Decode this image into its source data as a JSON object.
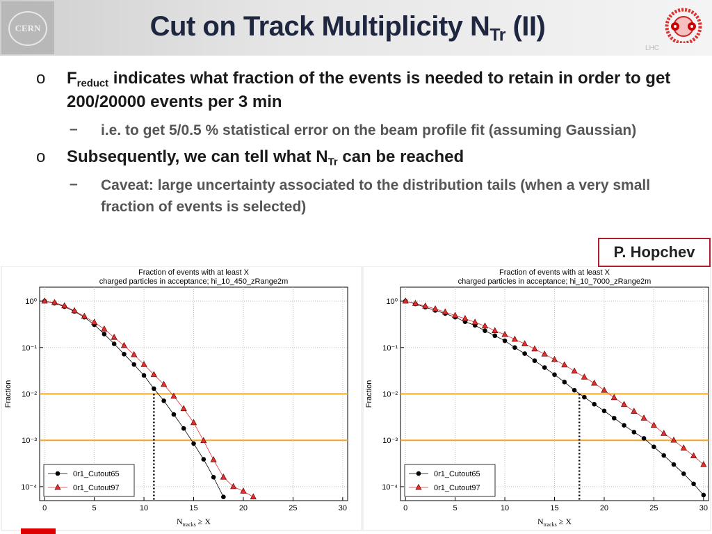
{
  "header": {
    "title": [
      "Cut on Track Multiplicity N",
      "Tr",
      " (II)"
    ],
    "logo_left": "CERN",
    "logo_right": "LHC"
  },
  "bullets": [
    {
      "marker": "o",
      "text": [
        "F",
        "reduct",
        " indicates what fraction of the events is needed to retain in order to get 200/20000 events per 3 min"
      ],
      "items": [
        {
          "marker": "–",
          "text": [
            "i.e. to get 5/0.5 % statistical error on the beam profile fit (assuming Gaussian)"
          ]
        }
      ]
    },
    {
      "marker": "o",
      "text": [
        "Subsequently, we can tell what N",
        "Tr",
        " can be reached"
      ],
      "items": [
        {
          "marker": "–",
          "text": [
            "Caveat: large uncertainty associated to the distribution tails (when a very small fraction of events is selected)"
          ]
        }
      ]
    }
  ],
  "author": "P. Hopchev",
  "chart_data": [
    {
      "type": "line",
      "title": [
        "Fraction of events with at least X",
        "charged particles in acceptance; hi_10_450_zRange2m"
      ],
      "xlabel": [
        "N",
        "tracks",
        " ≥ X"
      ],
      "ylabel": "Fraction",
      "yscale": "log",
      "grid": true,
      "legend": "lower left",
      "xlim": [
        -0.5,
        30.5
      ],
      "xticks": [
        0,
        5,
        10,
        15,
        20,
        25,
        30
      ],
      "ylim": [
        5e-05,
        2
      ],
      "yticks": [
        {
          "value": 1,
          "label": "10⁰"
        },
        {
          "value": 0.1,
          "label": "10⁻¹"
        },
        {
          "value": 0.01,
          "label": "10⁻²"
        },
        {
          "value": 0.001,
          "label": "10⁻³"
        },
        {
          "value": 0.0001,
          "label": "10⁻⁴"
        }
      ],
      "hlines": [
        0.01,
        0.001
      ],
      "hline_color": "#f5a623",
      "vline": 11,
      "series": [
        {
          "name": "0r1_Cutout65",
          "color": "#000000",
          "marker": "circle",
          "x": [
            0,
            1,
            2,
            3,
            4,
            5,
            6,
            7,
            8,
            9,
            10,
            11,
            12,
            13,
            14,
            15,
            16,
            17,
            18
          ],
          "values": [
            1.0,
            0.9,
            0.76,
            0.6,
            0.45,
            0.31,
            0.195,
            0.12,
            0.072,
            0.043,
            0.025,
            0.013,
            0.0071,
            0.0036,
            0.0018,
            0.00085,
            0.00039,
            0.00016,
            6e-05
          ]
        },
        {
          "name": "0r1_Cutout97",
          "color": "#e03030",
          "marker": "triangle",
          "x": [
            0,
            1,
            2,
            3,
            4,
            5,
            6,
            7,
            8,
            9,
            10,
            11,
            12,
            13,
            14,
            15,
            16,
            17,
            18,
            19,
            20,
            21
          ],
          "values": [
            1.0,
            0.93,
            0.79,
            0.62,
            0.47,
            0.35,
            0.25,
            0.165,
            0.11,
            0.07,
            0.043,
            0.026,
            0.016,
            0.0089,
            0.0048,
            0.0024,
            0.00098,
            0.00038,
            0.00016,
            0.0001,
            8e-05,
            6e-05
          ]
        }
      ]
    },
    {
      "type": "line",
      "title": [
        "Fraction of events with at least X",
        "charged particles in acceptance; hi_10_7000_zRange2m"
      ],
      "xlabel": [
        "N",
        "tracks",
        " ≥ X"
      ],
      "ylabel": "Fraction",
      "yscale": "log",
      "grid": true,
      "legend": "lower left",
      "xlim": [
        -0.5,
        30.5
      ],
      "xticks": [
        0,
        5,
        10,
        15,
        20,
        25,
        30
      ],
      "ylim": [
        5e-05,
        2
      ],
      "yticks": [
        {
          "value": 1,
          "label": "10⁰"
        },
        {
          "value": 0.1,
          "label": "10⁻¹"
        },
        {
          "value": 0.01,
          "label": "10⁻²"
        },
        {
          "value": 0.001,
          "label": "10⁻³"
        },
        {
          "value": 0.0001,
          "label": "10⁻⁴"
        }
      ],
      "hlines": [
        0.01,
        0.001
      ],
      "hline_color": "#f5a623",
      "vline": 17.5,
      "series": [
        {
          "name": "0r1_Cutout65",
          "color": "#000000",
          "marker": "circle",
          "x": [
            0,
            1,
            2,
            3,
            4,
            5,
            6,
            7,
            8,
            9,
            10,
            11,
            12,
            13,
            14,
            15,
            16,
            17,
            18,
            19,
            20,
            21,
            22,
            23,
            24,
            25,
            26,
            27,
            28,
            29,
            30
          ],
          "values": [
            1.0,
            0.87,
            0.74,
            0.63,
            0.54,
            0.45,
            0.36,
            0.3,
            0.23,
            0.18,
            0.14,
            0.1,
            0.074,
            0.052,
            0.037,
            0.026,
            0.018,
            0.012,
            0.0085,
            0.006,
            0.0043,
            0.003,
            0.0021,
            0.0015,
            0.0011,
            0.00072,
            0.00047,
            0.0003,
            0.00019,
            0.000115,
            6.6e-05
          ]
        },
        {
          "name": "0r1_Cutout97",
          "color": "#e03030",
          "marker": "triangle",
          "x": [
            0,
            1,
            2,
            3,
            4,
            5,
            6,
            7,
            8,
            9,
            10,
            11,
            12,
            13,
            14,
            15,
            16,
            17,
            18,
            19,
            20,
            21,
            22,
            23,
            24,
            25,
            26,
            27,
            28,
            29,
            30
          ],
          "values": [
            1.0,
            0.89,
            0.78,
            0.68,
            0.58,
            0.49,
            0.42,
            0.35,
            0.29,
            0.23,
            0.19,
            0.15,
            0.12,
            0.093,
            0.072,
            0.055,
            0.042,
            0.031,
            0.023,
            0.017,
            0.012,
            0.0083,
            0.0059,
            0.0042,
            0.003,
            0.0021,
            0.0014,
            0.001,
            0.00068,
            0.00046,
            0.0003
          ]
        }
      ]
    }
  ]
}
